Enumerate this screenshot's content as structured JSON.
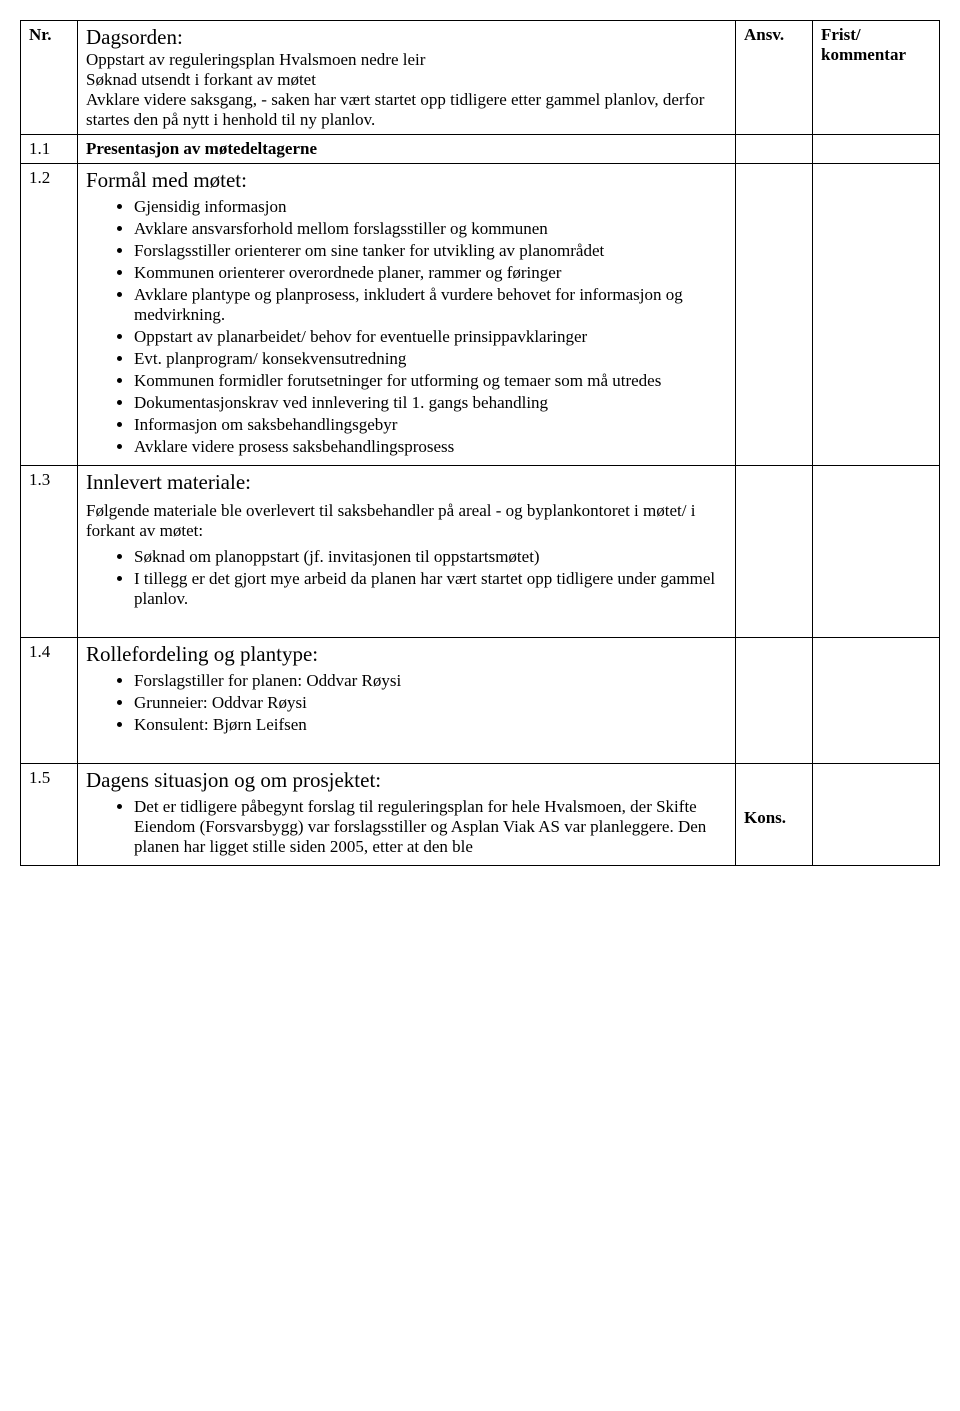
{
  "header": {
    "nr": "Nr.",
    "ansv": "Ansv.",
    "frist1": "Frist/",
    "frist2": "kommentar"
  },
  "rowA": {
    "title": "Dagsorden:",
    "l1": "Oppstart av reguleringsplan Hvalsmoen nedre leir",
    "l2": "Søknad utsendt i forkant av møtet",
    "l3": "Avklare videre saksgang, - saken har vært startet opp tidligere etter gammel planlov, derfor startes den på nytt i henhold til ny planlov."
  },
  "row11": {
    "nr": "1.1",
    "text": "Presentasjon av møtedeltagerne"
  },
  "row12": {
    "nr": "1.2",
    "title": "Formål med møtet:",
    "b1": "Gjensidig informasjon",
    "b2": "Avklare ansvarsforhold mellom forslagsstiller og kommunen",
    "b3": "Forslagsstiller orienterer om sine tanker for utvikling av planområdet",
    "b4": "Kommunen orienterer overordnede planer, rammer og føringer",
    "b5": "Avklare plantype og planprosess, inkludert å vurdere behovet for informasjon og medvirkning.",
    "b6": "Oppstart av planarbeidet/ behov for eventuelle prinsippavklaringer",
    "b7": "Evt. planprogram/ konsekvensutredning",
    "b8": "Kommunen formidler forutsetninger for utforming og temaer som må utredes",
    "b9": "Dokumentasjonskrav ved innlevering til 1. gangs behandling",
    "b10": "Informasjon om saksbehandlingsgebyr",
    "b11": "Avklare videre prosess saksbehandlingsprosess"
  },
  "row13": {
    "nr": "1.3",
    "title": "Innlevert materiale:",
    "intro": "Følgende materiale ble overlevert til saksbehandler på areal - og byplankontoret i møtet/ i forkant av møtet:",
    "b1": "Søknad om planoppstart (jf. invitasjonen til oppstartsmøtet)",
    "b2": "I tillegg er det gjort mye arbeid da planen har vært startet opp tidligere under gammel planlov."
  },
  "row14": {
    "nr": "1.4",
    "title": "Rollefordeling og plantype:",
    "b1": "Forslagstiller for planen: Oddvar Røysi",
    "b2": "Grunneier: Oddvar Røysi",
    "b3": "Konsulent: Bjørn Leifsen"
  },
  "row15": {
    "nr": "1.5",
    "title": "Dagens situasjon og om prosjektet:",
    "b1": "Det er tidligere påbegynt forslag til reguleringsplan for hele Hvalsmoen, der Skifte Eiendom (Forsvarsbygg) var forslagsstiller og Asplan Viak AS var planleggere. Den planen har ligget stille siden 2005, etter at den ble",
    "ansv": "Kons."
  }
}
